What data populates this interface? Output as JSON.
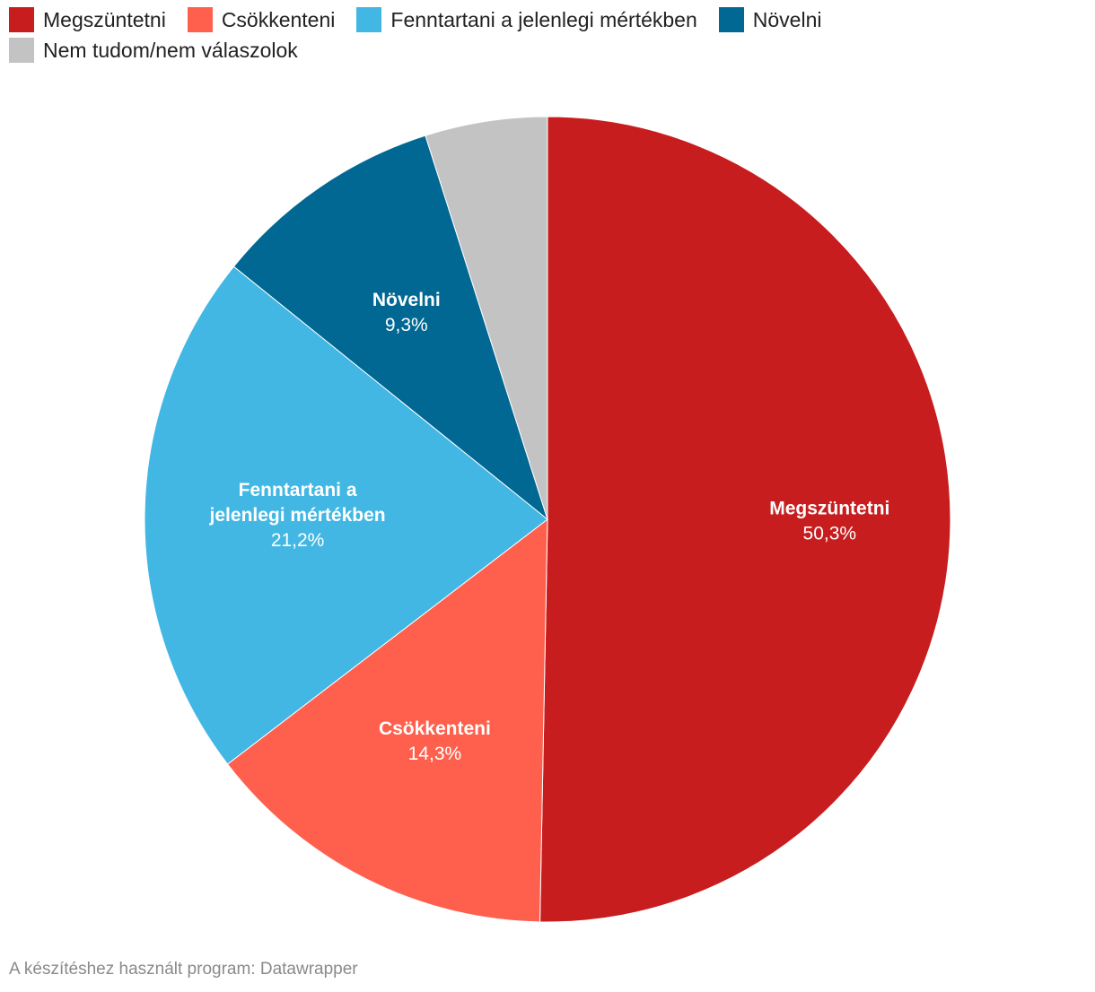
{
  "chart_data": {
    "type": "pie",
    "title": "",
    "legend_position": "top",
    "start_angle_deg": 0,
    "direction": "clockwise",
    "slices": [
      {
        "label": "Megszüntetni",
        "value": 50.3,
        "value_label": "50,3%",
        "color": "#c71d1e",
        "show_label": true,
        "label_lines": [
          "Megszüntetni"
        ]
      },
      {
        "label": "Csökkenteni",
        "value": 14.3,
        "value_label": "14,3%",
        "color": "#ff604d",
        "show_label": true,
        "label_lines": [
          "Csökkenteni"
        ]
      },
      {
        "label": "Fenntartani a jelenlegi mértékben",
        "value": 21.2,
        "value_label": "21,2%",
        "color": "#42b7e3",
        "show_label": true,
        "label_lines": [
          "Fenntartani a",
          "jelenlegi mértékben"
        ]
      },
      {
        "label": "Növelni",
        "value": 9.3,
        "value_label": "9,3%",
        "color": "#006892",
        "show_label": true,
        "label_lines": [
          "Növelni"
        ]
      },
      {
        "label": "Nem tudom/nem válaszolok",
        "value": 4.9,
        "value_label": "",
        "color": "#c3c3c3",
        "show_label": false,
        "label_lines": []
      }
    ]
  },
  "footer": {
    "credit": "A készítéshez használt program: Datawrapper"
  }
}
